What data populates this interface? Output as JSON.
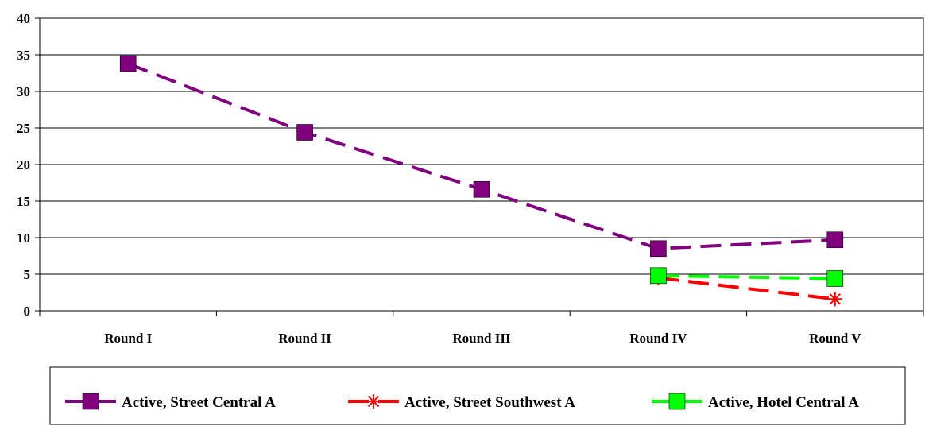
{
  "chart_data": {
    "type": "line",
    "categories": [
      "Round I",
      "Round II",
      "Round III",
      "Round IV",
      "Round V"
    ],
    "ylim": [
      0,
      40
    ],
    "yticks": [
      0,
      5,
      10,
      15,
      20,
      25,
      30,
      35,
      40
    ],
    "grid": true,
    "legend_position": "bottom",
    "series": [
      {
        "name": "Active, Street Central A",
        "values": [
          33.8,
          24.4,
          16.6,
          8.5,
          9.7
        ],
        "color": "#800080",
        "marker": "square"
      },
      {
        "name": "Active, Street Southwest A",
        "values": [
          null,
          null,
          null,
          4.5,
          1.6
        ],
        "color": "#ff0000",
        "marker": "asterisk"
      },
      {
        "name": "Active, Hotel Central A",
        "values": [
          null,
          null,
          null,
          4.8,
          4.4
        ],
        "color": "#00ff00",
        "marker": "square"
      }
    ]
  }
}
